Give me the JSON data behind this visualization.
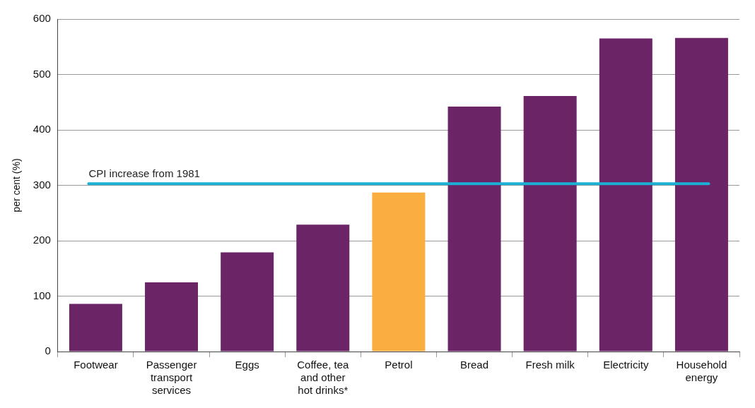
{
  "chart_data": {
    "type": "bar",
    "ylabel": "per cent (%)",
    "categories": [
      "Footwear",
      "Passenger transport services",
      "Eggs",
      "Coffee, tea and other hot drinks*",
      "Petrol",
      "Bread",
      "Fresh milk",
      "Electricity",
      "Household energy"
    ],
    "values": [
      86,
      125,
      179,
      229,
      287,
      442,
      461,
      565,
      566
    ],
    "colors": [
      "#6b2567",
      "#6b2567",
      "#6b2567",
      "#6b2567",
      "#f9ae3f",
      "#6b2567",
      "#6b2567",
      "#6b2567",
      "#6b2567"
    ],
    "ylim": [
      0,
      600
    ],
    "yticks": [
      0,
      100,
      200,
      300,
      400,
      500,
      600
    ],
    "grid": "y",
    "legend": false,
    "ref_lines": [
      {
        "axis": "y",
        "value": 303,
        "label": "CPI increase from 1981",
        "color": "#1bb1d4"
      }
    ]
  }
}
